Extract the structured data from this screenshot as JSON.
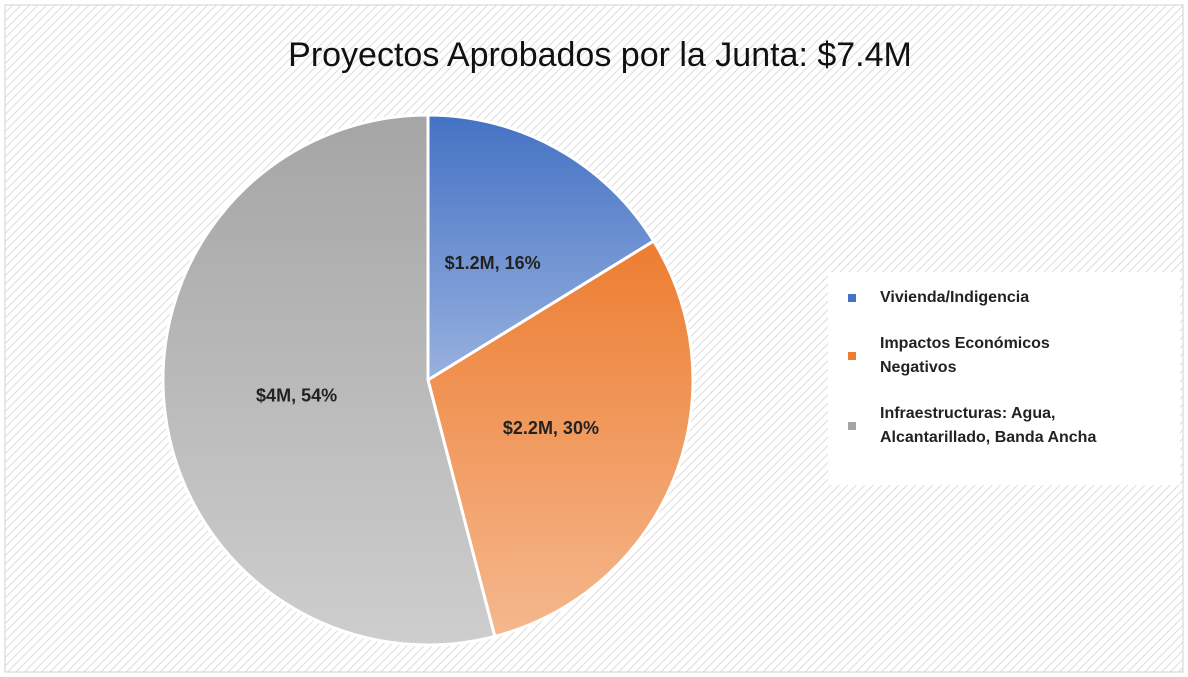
{
  "chart_data": {
    "type": "pie",
    "title": "Proyectos Aprobados por la Junta: $7.4M",
    "categories": [
      "Vivienda/Indigencia",
      "Impactos Económicos Negativos",
      "Infraestructuras: Agua, Alcantarillado, Banda Ancha"
    ],
    "values": [
      1200000,
      2200000,
      4000000
    ],
    "value_labels": [
      "$1.2M, 16%",
      "$2.2M, 30%",
      "$4M, 54%"
    ],
    "colors": [
      "#4472c4",
      "#ed7d31",
      "#a5a5a5"
    ],
    "legend": "right"
  }
}
